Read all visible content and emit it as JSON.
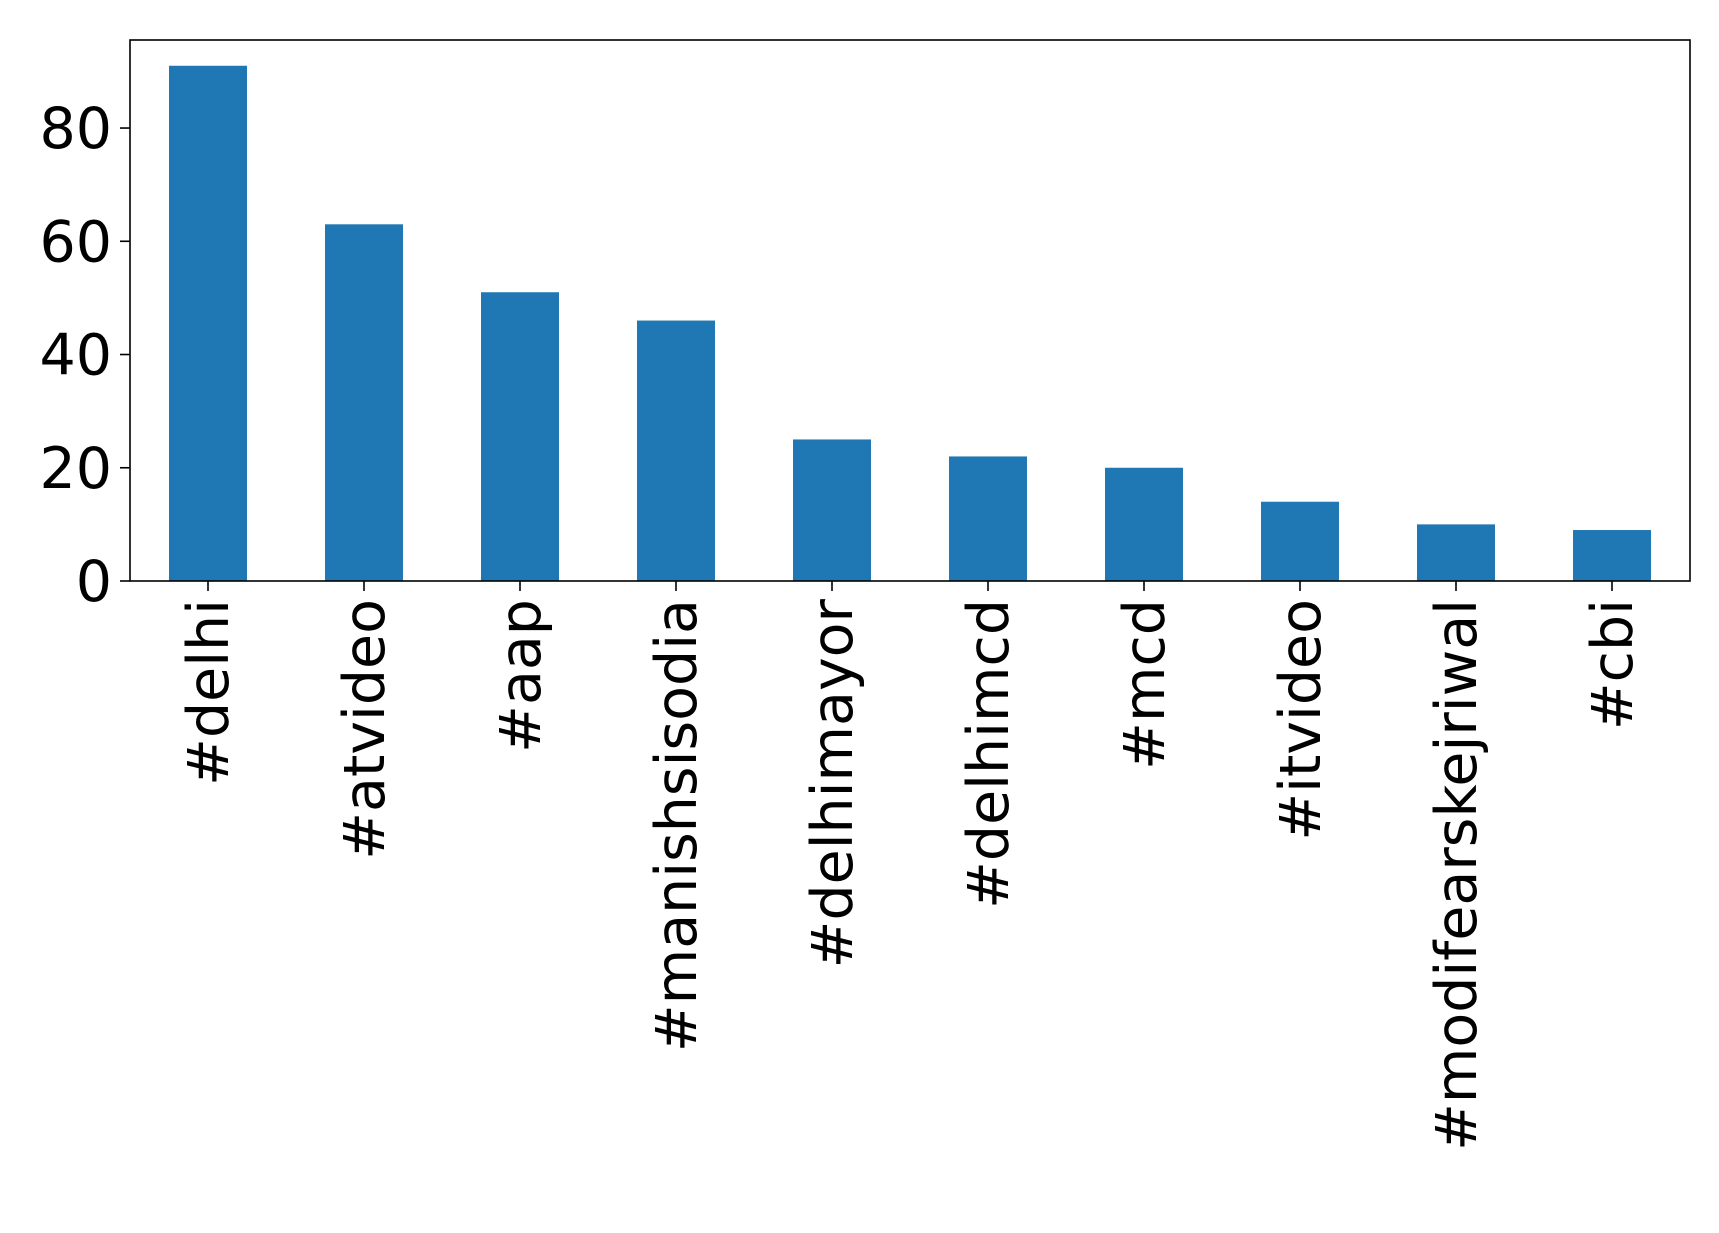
{
  "chart_data": {
    "type": "bar",
    "title": "",
    "xlabel": "",
    "ylabel": "",
    "categories": [
      "#delhi",
      "#atvideo",
      "#aap",
      "#manishsisodia",
      "#delhimayor",
      "#delhimcd",
      "#mcd",
      "#itvideo",
      "#modifearskejriwal",
      "#cbi"
    ],
    "values": [
      91,
      63,
      51,
      46,
      25,
      22,
      20,
      14,
      10,
      9
    ],
    "ylim": [
      0,
      95.55
    ],
    "yticks": [
      0,
      20,
      40,
      60,
      80
    ],
    "ytick_labels": [
      "0",
      "20",
      "40",
      "60",
      "80"
    ],
    "grid": false,
    "legend": "none",
    "colors": {
      "bar": "#1f77b4",
      "axis": "#000000",
      "background": "#ffffff"
    }
  }
}
